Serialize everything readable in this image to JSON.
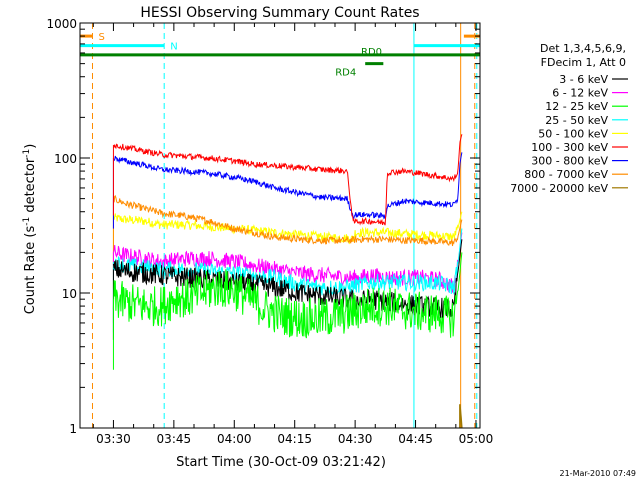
{
  "chart_data": {
    "type": "line",
    "title": "HESSI Observing Summary Count Rates",
    "xlabel": "Start Time (30-Oct-09 03:21:42)",
    "ylabel_prefix": "Count Rate (s",
    "ylabel_sup1": "-1",
    "ylabel_mid": " detector",
    "ylabel_sup2": "-1",
    "ylabel_suffix": ")",
    "y_scale": "log",
    "ylim": [
      1,
      1000
    ],
    "xlim_min": [
      201.7,
      301
    ],
    "x_ticks": [
      "03:30",
      "03:45",
      "04:00",
      "04:15",
      "04:30",
      "04:45",
      "05:00"
    ],
    "x_tick_min": [
      210,
      225,
      240,
      255,
      270,
      285,
      300
    ],
    "y_ticks": [
      "1",
      "10",
      "100",
      "1000"
    ],
    "y_tick_vals": [
      1,
      10,
      100,
      1000
    ],
    "legend_header": [
      "Det 1,3,4,5,6,9,",
      "FDecim 1, Att 0"
    ],
    "legend_position": "right",
    "series": [
      {
        "name": "3 - 6 keV",
        "color": "#000000",
        "x": [
          210,
          213,
          218,
          222,
          228,
          234,
          240,
          245,
          250,
          256,
          262,
          268,
          271,
          274,
          278,
          282,
          286,
          291,
          294.5,
          295.5,
          296.5
        ],
        "y": [
          15,
          14.5,
          14,
          13.5,
          13,
          12.5,
          12,
          11.5,
          11,
          10,
          9.5,
          9,
          8.7,
          9,
          8.6,
          8.3,
          8,
          7.8,
          7.5,
          14,
          25
        ]
      },
      {
        "name": "6 - 12 keV",
        "color": "#ff00ff",
        "x": [
          210,
          213,
          218,
          222,
          228,
          234,
          240,
          245,
          250,
          256,
          262,
          268,
          271,
          274,
          278,
          282,
          286,
          291,
          294.5,
          295.5,
          296.5
        ],
        "y": [
          20,
          19,
          18,
          17,
          18,
          18,
          17,
          16,
          15,
          14,
          13.5,
          13,
          13,
          13.5,
          13,
          13,
          13,
          12.5,
          11,
          16,
          28
        ]
      },
      {
        "name": "12 - 25 keV",
        "color": "#00ff00",
        "x": [
          210,
          213,
          218,
          222,
          226,
          228,
          232,
          236,
          240,
          244,
          248,
          252,
          256,
          262,
          268,
          271,
          274,
          278,
          282,
          286,
          291,
          294.5,
          295.5,
          296.5
        ],
        "y": [
          9,
          8.5,
          8,
          8,
          9.5,
          9,
          10,
          11,
          10.5,
          9,
          7.5,
          6.8,
          6.5,
          6.5,
          7,
          7.5,
          8,
          8,
          7.5,
          7.2,
          7,
          6.5,
          10,
          20
        ]
      },
      {
        "name": "25 - 50 keV",
        "color": "#00ffff",
        "x": [
          210,
          213,
          218,
          222,
          228,
          234,
          240,
          245,
          250,
          256,
          262,
          268,
          271,
          274,
          278,
          282,
          286,
          291,
          294.5,
          295.5,
          296.5
        ],
        "y": [
          17,
          16,
          15.5,
          15,
          15,
          14.5,
          14,
          13.5,
          13,
          11.5,
          11,
          11,
          11.5,
          12,
          12,
          12,
          12,
          11.8,
          11,
          16,
          30
        ]
      },
      {
        "name": "50 - 100 keV",
        "color": "#ffff00",
        "x": [
          210,
          213,
          218,
          222,
          228,
          234,
          240,
          245,
          250,
          256,
          262,
          268,
          269.5,
          270,
          274,
          278,
          282,
          286,
          291,
          294.5,
          295.5,
          296.5
        ],
        "y": [
          36,
          35,
          34,
          32,
          32,
          31,
          30,
          29,
          28,
          27,
          26,
          25.5,
          25,
          28,
          28,
          28,
          27.5,
          27,
          26.5,
          26,
          30,
          40
        ]
      },
      {
        "name": "100 - 300 keV",
        "color": "#ff0000",
        "x": [
          210,
          213,
          218,
          222,
          228,
          234,
          240,
          245,
          250,
          256,
          262,
          268,
          269.5,
          270,
          274,
          277.5,
          278,
          282,
          286,
          291,
          294.5,
          295.5,
          296,
          296.5
        ],
        "y": [
          125,
          120,
          112,
          106,
          103,
          100,
          95,
          90,
          88,
          85,
          82,
          80,
          33,
          34,
          34,
          33,
          78,
          80,
          77,
          73,
          70,
          78,
          130,
          150
        ]
      },
      {
        "name": "300 - 800 keV",
        "color": "#0000ff",
        "x": [
          210,
          213,
          218,
          222,
          228,
          234,
          240,
          245,
          250,
          256,
          262,
          268,
          269.5,
          270,
          274,
          277.5,
          278,
          282,
          286,
          291,
          294.5,
          295.5,
          296,
          296.5
        ],
        "y": [
          100,
          95,
          88,
          82,
          80,
          77,
          72,
          67,
          60,
          55,
          51,
          50,
          37,
          38,
          38,
          37,
          44,
          48,
          47,
          46,
          45,
          50,
          90,
          110
        ]
      },
      {
        "name": "800 - 7000 keV",
        "color": "#ff8c00",
        "x": [
          210,
          213,
          218,
          222,
          228,
          234,
          240,
          245,
          250,
          256,
          262,
          268,
          271,
          274,
          278,
          282,
          286,
          291,
          294.5,
          295.5,
          296.5
        ],
        "y": [
          50,
          46,
          42,
          39,
          37,
          34,
          30,
          28,
          26,
          25,
          24.5,
          24.5,
          25,
          25,
          25,
          24.5,
          24.5,
          24,
          23.5,
          26,
          35
        ]
      },
      {
        "name": "7000 - 20000 keV",
        "color": "#a07800",
        "x": [
          296,
          296,
          296.3,
          296.5
        ],
        "y": [
          1,
          1.5,
          1.2,
          1
        ]
      }
    ],
    "bars": [
      {
        "label": "S",
        "color": "#ff8c00",
        "ymid": 800,
        "x0": 201.7,
        "x1": 204.8
      },
      {
        "label": "",
        "color": "#ff8c00",
        "ymid": 800,
        "x0": 297,
        "x1": 301
      },
      {
        "label": "N",
        "color": "#00ffff",
        "ymid": 680,
        "x0": 201.7,
        "x1": 222.6
      },
      {
        "label": "",
        "color": "#00ffff",
        "ymid": 680,
        "x0": 284.6,
        "x1": 301
      },
      {
        "label": "",
        "color": "#008000",
        "ymid": 580,
        "x0": 201.7,
        "x1": 301
      },
      {
        "label": "RD0",
        "color": "#008000",
        "ymid": 580,
        "x0": 0,
        "x1": 0
      },
      {
        "label": "RD4",
        "color": "#008000",
        "ymid": 500,
        "x0": 272.5,
        "x1": 277
      }
    ],
    "vlines": [
      {
        "x": 201.7,
        "color": "#00ffff",
        "style": "solid"
      },
      {
        "x": 204.8,
        "color": "#ff8c00",
        "style": "dash"
      },
      {
        "x": 222.6,
        "color": "#00ffff",
        "style": "dash"
      },
      {
        "x": 284.6,
        "color": "#00ffff",
        "style": "solid"
      },
      {
        "x": 296.2,
        "color": "#ff8c00",
        "style": "solid"
      },
      {
        "x": 299.7,
        "color": "#ff8c00",
        "style": "dash"
      },
      {
        "x": 300.2,
        "color": "#00ffff",
        "style": "dash"
      }
    ]
  },
  "footer_date": "21-Mar-2010 07:49"
}
